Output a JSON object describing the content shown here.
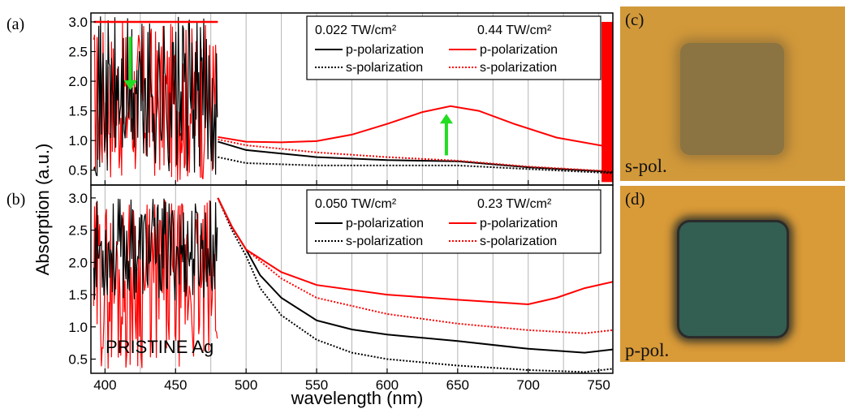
{
  "figure": {
    "y_axis_label": "Absorption (a.u.)",
    "x_axis_label": "wavelength (nm)"
  },
  "chart_data": [
    {
      "type": "line",
      "panel_label": "(a)",
      "inline_text": "",
      "xlim": [
        390,
        760
      ],
      "ylim": [
        0.25,
        3.15
      ],
      "x_ticks": [
        400,
        450,
        500,
        550,
        600,
        650,
        700,
        750
      ],
      "y_ticks": [
        0.5,
        1.0,
        1.5,
        2.0,
        2.5,
        3.0
      ],
      "y_tick_labels": [
        "0.5",
        "1.0",
        "1.5",
        "2.0",
        "2.5",
        "3.0"
      ],
      "grid": "vertical dotted lines every 25 nm",
      "legend": {
        "placement": "top-right",
        "headers": [
          "0.022 TW/cm²",
          "0.44 TW/cm²"
        ],
        "entries": [
          "p-polarization",
          "s-polarization",
          "p-polarization",
          "s-polarization"
        ]
      },
      "series": [
        {
          "name": "p-polarization",
          "color": "#000000",
          "dash": "solid",
          "x": [
            480,
            500,
            550,
            600,
            650,
            700,
            760
          ],
          "y": [
            0.98,
            0.84,
            0.72,
            0.67,
            0.65,
            0.55,
            0.47
          ]
        },
        {
          "name": "s-polarization",
          "color": "#000000",
          "dash": "dotted",
          "x": [
            480,
            500,
            550,
            600,
            650,
            700,
            760
          ],
          "y": [
            0.72,
            0.62,
            0.58,
            0.58,
            0.58,
            0.52,
            0.45
          ]
        },
        {
          "name": "p-polarization",
          "color": "#ff0000",
          "dash": "solid",
          "x": [
            480,
            500,
            525,
            550,
            575,
            600,
            625,
            645,
            665,
            690,
            720,
            760
          ],
          "y": [
            1.06,
            0.98,
            0.97,
            0.99,
            1.1,
            1.28,
            1.48,
            1.58,
            1.5,
            1.28,
            1.05,
            0.88
          ]
        },
        {
          "name": "s-polarization",
          "color": "#ff0000",
          "dash": "dotted",
          "x": [
            480,
            500,
            550,
            600,
            650,
            700,
            760
          ],
          "y": [
            1.02,
            0.92,
            0.8,
            0.72,
            0.66,
            0.56,
            0.48
          ]
        }
      ],
      "arrows": [
        {
          "color": "#22dd22",
          "x": 418,
          "y_from": 2.75,
          "y_to": 1.85
        },
        {
          "color": "#22dd22",
          "x": 642,
          "y_from": 0.75,
          "y_to": 1.45
        }
      ]
    },
    {
      "type": "line",
      "panel_label": "(b)",
      "inline_text": "PRISTINE Ag",
      "xlim": [
        390,
        760
      ],
      "ylim": [
        0.28,
        3.2
      ],
      "x_ticks": [
        400,
        450,
        500,
        550,
        600,
        650,
        700,
        750
      ],
      "x_tick_labels": [
        "400",
        "450",
        "500",
        "550",
        "600",
        "650",
        "700",
        "750"
      ],
      "y_ticks": [
        0.5,
        1.0,
        1.5,
        2.0,
        2.5,
        3.0
      ],
      "y_tick_labels": [
        "0.5",
        "1.0",
        "1.5",
        "2.0",
        "2.5",
        "3.0"
      ],
      "grid": "vertical dotted lines every 25 nm",
      "legend": {
        "placement": "top-right",
        "headers": [
          "0.050 TW/cm²",
          "0.23 TW/cm²"
        ],
        "entries": [
          "p-polarization",
          "s-polarization",
          "p-polarization",
          "s-polarization"
        ]
      },
      "series": [
        {
          "name": "p-polarization",
          "color": "#000000",
          "dash": "solid",
          "x": [
            480,
            490,
            500,
            510,
            525,
            550,
            575,
            600,
            650,
            700,
            740,
            760
          ],
          "y": [
            3.0,
            2.55,
            2.2,
            1.8,
            1.45,
            1.1,
            0.96,
            0.88,
            0.78,
            0.66,
            0.6,
            0.65
          ]
        },
        {
          "name": "s-polarization",
          "color": "#000000",
          "dash": "dotted",
          "x": [
            480,
            490,
            500,
            510,
            525,
            550,
            575,
            600,
            650,
            700,
            740,
            760
          ],
          "y": [
            3.0,
            2.5,
            2.1,
            1.6,
            1.18,
            0.8,
            0.6,
            0.5,
            0.4,
            0.33,
            0.3,
            0.35
          ]
        },
        {
          "name": "p-polarization",
          "color": "#ff0000",
          "dash": "solid",
          "x": [
            480,
            490,
            500,
            525,
            550,
            600,
            650,
            700,
            720,
            740,
            760
          ],
          "y": [
            3.0,
            2.55,
            2.2,
            1.85,
            1.65,
            1.5,
            1.42,
            1.35,
            1.45,
            1.6,
            1.7
          ]
        },
        {
          "name": "s-polarization",
          "color": "#ff0000",
          "dash": "dotted",
          "x": [
            480,
            490,
            500,
            525,
            550,
            600,
            650,
            700,
            740,
            760
          ],
          "y": [
            3.0,
            2.55,
            2.2,
            1.75,
            1.45,
            1.2,
            1.05,
            0.95,
            0.9,
            0.95
          ]
        }
      ]
    }
  ],
  "photos": [
    {
      "label": "(c)",
      "caption": "s-pol.",
      "background": "#d2993a",
      "square_color": "#8b7442"
    },
    {
      "label": "(d)",
      "caption": "p-pol.",
      "background": "#d99a38",
      "square_color": "#335e52"
    }
  ]
}
